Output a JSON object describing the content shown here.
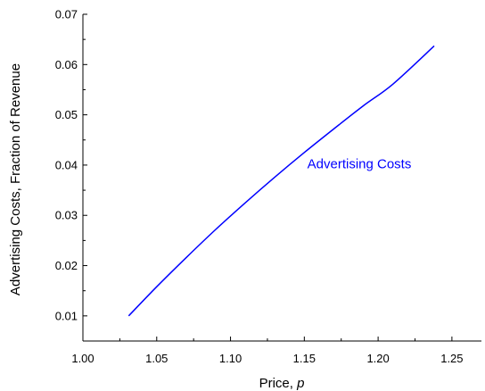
{
  "chart_data": {
    "type": "line",
    "title": "",
    "xlabel": "Price, ",
    "xlabel_var": "p",
    "ylabel": "Advertising Costs, Fraction of Revenue",
    "xlim": [
      1.0,
      1.27
    ],
    "ylim": [
      0.005,
      0.07
    ],
    "xticks": [
      {
        "value": 1.0,
        "label": "1.00"
      },
      {
        "value": 1.05,
        "label": "1.05"
      },
      {
        "value": 1.1,
        "label": "1.10"
      },
      {
        "value": 1.15,
        "label": "1.15"
      },
      {
        "value": 1.2,
        "label": "1.20"
      },
      {
        "value": 1.25,
        "label": "1.25"
      }
    ],
    "yticks": [
      {
        "value": 0.01,
        "label": "0.01"
      },
      {
        "value": 0.02,
        "label": "0.02"
      },
      {
        "value": 0.03,
        "label": "0.03"
      },
      {
        "value": 0.04,
        "label": "0.04"
      },
      {
        "value": 0.05,
        "label": "0.05"
      },
      {
        "value": 0.06,
        "label": "0.06"
      },
      {
        "value": 0.07,
        "label": "0.07"
      }
    ],
    "grid": false,
    "series": [
      {
        "name": "Advertising Costs",
        "color": "#0000ff",
        "x": [
          1.031,
          1.05,
          1.07,
          1.09,
          1.11,
          1.13,
          1.15,
          1.17,
          1.19,
          1.21,
          1.238
        ],
        "y": [
          0.01,
          0.0158,
          0.0216,
          0.0272,
          0.0325,
          0.0376,
          0.0425,
          0.0472,
          0.0518,
          0.0561,
          0.0637
        ]
      }
    ],
    "annotations": [
      {
        "text": "Advertising Costs",
        "x": 1.152,
        "y": 0.0394,
        "color": "#0000ff"
      }
    ]
  }
}
